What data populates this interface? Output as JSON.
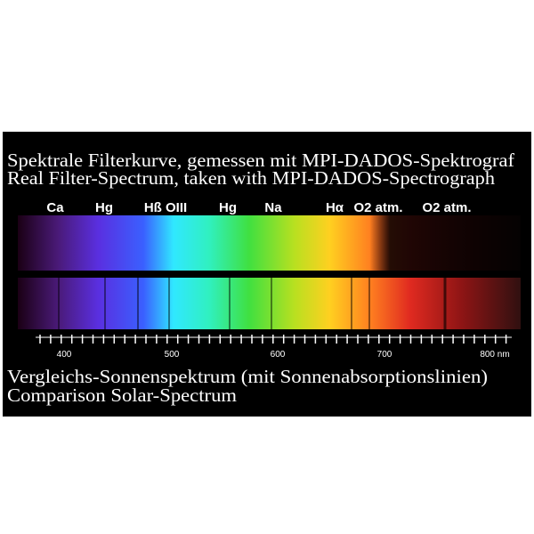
{
  "header": {
    "title_de": "Spektrale Filterkurve, gemessen mit MPI-DADOS-Spektrograf",
    "title_en": "Real Filter-Spectrum, taken with MPI-DADOS-Spectrograph"
  },
  "lines": [
    {
      "label": "Ca"
    },
    {
      "label": "Hg"
    },
    {
      "label": "Hß OIII"
    },
    {
      "label": "Hg"
    },
    {
      "label": "Na"
    },
    {
      "label": "Hα"
    },
    {
      "label": "O2 atm."
    },
    {
      "label": "O2 atm."
    }
  ],
  "scale": {
    "labels": [
      "400",
      "500",
      "600",
      "700",
      "800 nm"
    ]
  },
  "footer": {
    "caption_de": "Vergleichs-Sonnenspektrum (mit Sonnenabsorptionslinien)",
    "caption_en": "Comparison Solar-Spectrum"
  }
}
